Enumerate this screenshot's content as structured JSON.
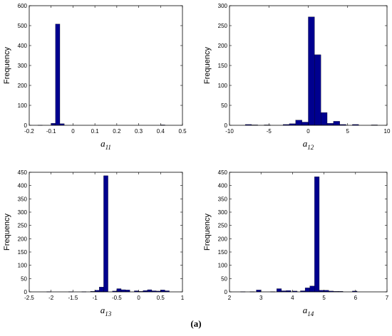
{
  "caption": "(a)",
  "chart_data": [
    {
      "type": "bar",
      "xlabel": "a11",
      "ylabel": "Frequency",
      "xlim": [
        -0.2,
        0.5
      ],
      "ylim": [
        0,
        600
      ],
      "xticks": [
        -0.2,
        -0.1,
        0,
        0.1,
        0.2,
        0.3,
        0.4,
        0.5
      ],
      "yticks": [
        0,
        100,
        200,
        300,
        400,
        500,
        600
      ],
      "bin_width": 0.02,
      "bins": [
        [
          -0.16,
          1
        ],
        [
          -0.1,
          10
        ],
        [
          -0.08,
          508
        ],
        [
          -0.06,
          8
        ],
        [
          0.4,
          2
        ]
      ],
      "color": "#00008f"
    },
    {
      "type": "bar",
      "xlabel": "a12",
      "ylabel": "Frequency",
      "xlim": [
        -10,
        10
      ],
      "ylim": [
        0,
        300
      ],
      "xticks": [
        -10,
        -5,
        0,
        5,
        10
      ],
      "yticks": [
        0,
        50,
        100,
        150,
        200,
        250,
        300
      ],
      "bin_width": 0.8,
      "bins": [
        [
          -8,
          2
        ],
        [
          -7.2,
          1
        ],
        [
          -5.6,
          1
        ],
        [
          -3.2,
          2
        ],
        [
          -2.4,
          4
        ],
        [
          -1.6,
          13
        ],
        [
          -0.8,
          8
        ],
        [
          0,
          272
        ],
        [
          0.8,
          177
        ],
        [
          1.6,
          32
        ],
        [
          2.4,
          5
        ],
        [
          3.2,
          10
        ],
        [
          4.0,
          2
        ],
        [
          5.6,
          2
        ],
        [
          8,
          1
        ]
      ],
      "color": "#00008f"
    },
    {
      "type": "bar",
      "xlabel": "a13",
      "ylabel": "Frequency",
      "xlim": [
        -2.5,
        1
      ],
      "ylim": [
        0,
        450
      ],
      "xticks": [
        -2.5,
        -2,
        -1.5,
        -1,
        -0.5,
        0,
        0.5,
        1
      ],
      "yticks": [
        0,
        50,
        100,
        150,
        200,
        250,
        300,
        350,
        400,
        450
      ],
      "bin_width": 0.1,
      "bins": [
        [
          -2.1,
          1
        ],
        [
          -1.6,
          1
        ],
        [
          -1.3,
          1
        ],
        [
          -1.1,
          2
        ],
        [
          -1.0,
          6
        ],
        [
          -0.9,
          18
        ],
        [
          -0.8,
          437
        ],
        [
          -0.6,
          3
        ],
        [
          -0.5,
          12
        ],
        [
          -0.4,
          8
        ],
        [
          -0.3,
          7
        ],
        [
          -0.1,
          4
        ],
        [
          0.0,
          2
        ],
        [
          0.1,
          5
        ],
        [
          0.2,
          8
        ],
        [
          0.3,
          4
        ],
        [
          0.4,
          3
        ],
        [
          0.5,
          7
        ],
        [
          0.6,
          4
        ]
      ],
      "color": "#00008f"
    },
    {
      "type": "bar",
      "xlabel": "a14",
      "ylabel": "Frequency",
      "xlim": [
        2,
        7
      ],
      "ylim": [
        0,
        450
      ],
      "xticks": [
        2,
        3,
        4,
        5,
        6,
        7
      ],
      "yticks": [
        0,
        50,
        100,
        150,
        200,
        250,
        300,
        350,
        400,
        450
      ],
      "bin_width": 0.15,
      "bins": [
        [
          2.35,
          1
        ],
        [
          2.65,
          1
        ],
        [
          2.85,
          7
        ],
        [
          3.3,
          1
        ],
        [
          3.5,
          12
        ],
        [
          3.65,
          4
        ],
        [
          3.8,
          5
        ],
        [
          4.0,
          3
        ],
        [
          4.25,
          4
        ],
        [
          4.4,
          15
        ],
        [
          4.55,
          22
        ],
        [
          4.7,
          433
        ],
        [
          4.85,
          6
        ],
        [
          5.0,
          6
        ],
        [
          5.15,
          3
        ],
        [
          5.3,
          2
        ],
        [
          5.45,
          2
        ],
        [
          5.9,
          3
        ]
      ],
      "color": "#00008f"
    }
  ]
}
